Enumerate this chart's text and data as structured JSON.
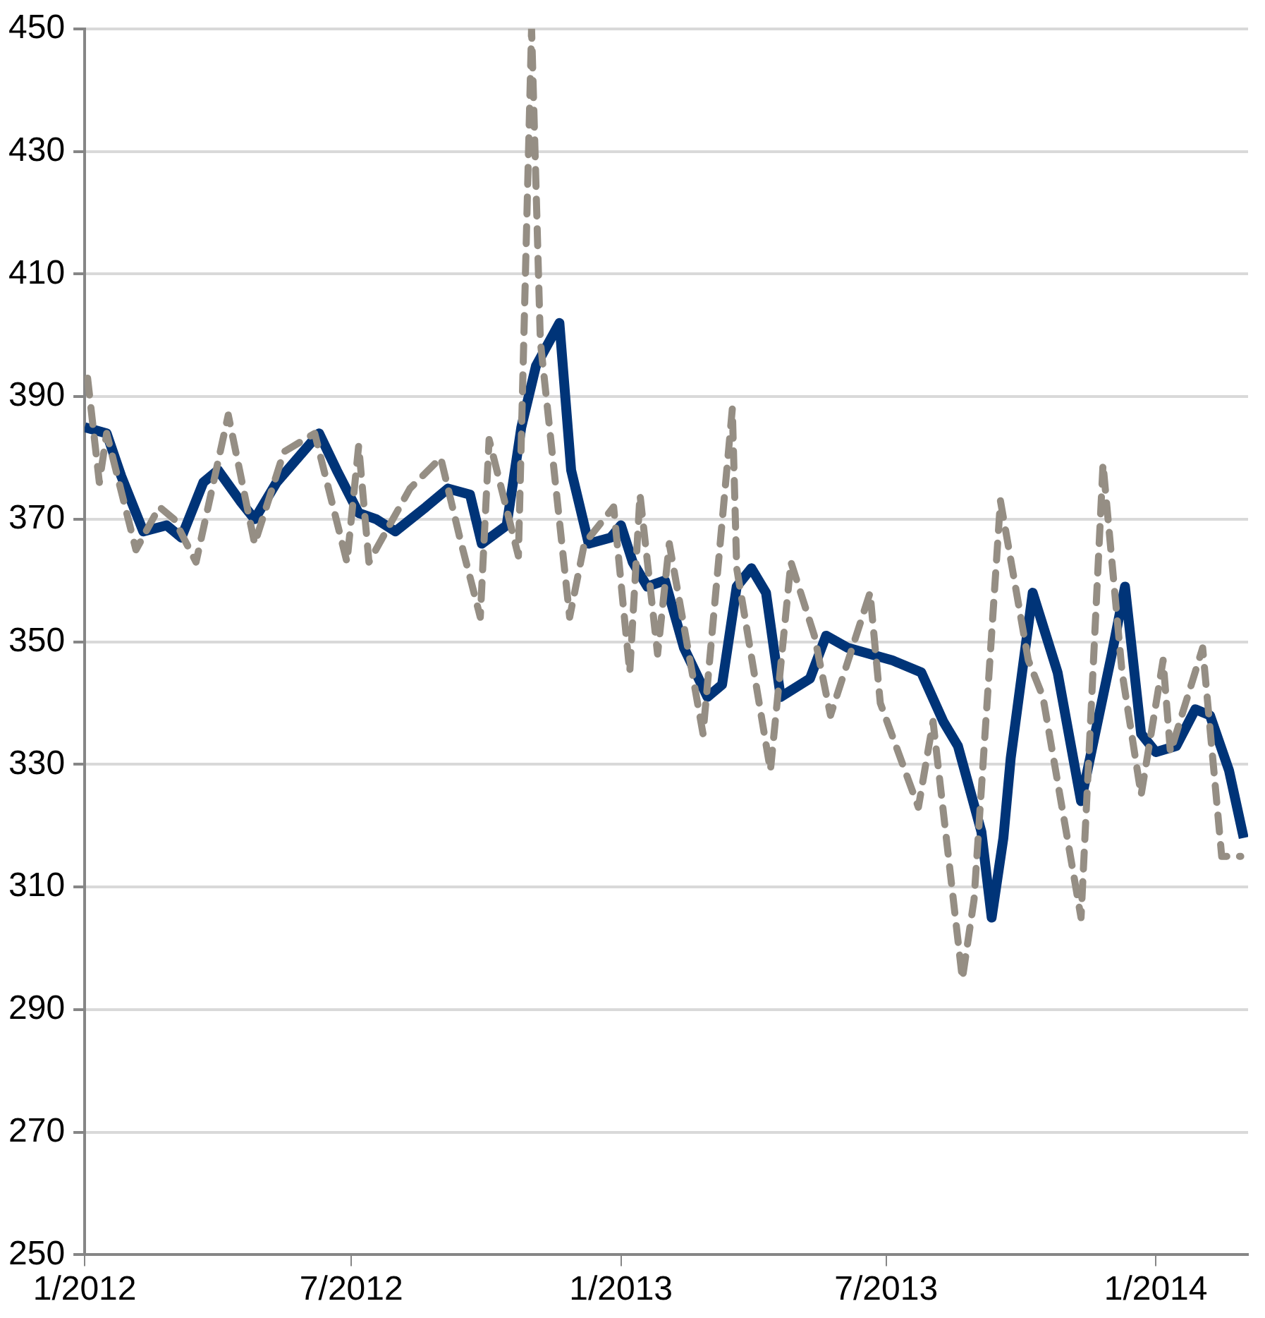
{
  "chart_data": {
    "type": "line",
    "ylim": [
      250,
      450
    ],
    "yticks": [
      250,
      270,
      290,
      310,
      330,
      350,
      370,
      390,
      410,
      430,
      450
    ],
    "xlim": [
      "2012-01-01",
      "2014-03-05"
    ],
    "xticks": [
      {
        "value": "2012-01-01",
        "label": "1/2012"
      },
      {
        "value": "2012-07-01",
        "label": "7/2012"
      },
      {
        "value": "2013-01-01",
        "label": "1/2013"
      },
      {
        "value": "2013-07-01",
        "label": "7/2013"
      },
      {
        "value": "2014-01-01",
        "label": "1/2014"
      }
    ],
    "grid": "y",
    "legend": false,
    "marker": "none",
    "series": [
      {
        "color": "#958e84",
        "line_style": "dashed",
        "x": [
          "2012-01-03",
          "2012-01-11",
          "2012-01-16",
          "2012-02-05",
          "2012-02-21",
          "2012-03-02",
          "2012-03-17",
          "2012-04-08",
          "2012-04-26",
          "2012-05-16",
          "2012-06-06",
          "2012-06-28",
          "2012-07-06",
          "2012-07-13",
          "2012-08-10",
          "2012-08-31",
          "2012-09-13",
          "2012-09-27",
          "2012-10-03",
          "2012-10-23",
          "2012-11-01",
          "2012-11-07",
          "2012-11-27",
          "2012-12-07",
          "2012-12-27",
          "2013-01-07",
          "2013-01-14",
          "2013-01-26",
          "2013-02-03",
          "2013-02-26",
          "2013-03-18",
          "2013-03-21",
          "2013-04-13",
          "2013-04-27",
          "2013-05-13",
          "2013-05-24",
          "2013-06-20",
          "2013-06-27",
          "2013-07-23",
          "2013-08-02",
          "2013-08-22",
          "2013-08-30",
          "2013-09-17",
          "2013-10-06",
          "2013-10-16",
          "2013-11-11",
          "2013-11-26",
          "2013-12-09",
          "2013-12-22",
          "2014-01-06",
          "2014-01-11",
          "2014-02-02",
          "2014-02-15",
          "2014-02-28"
        ],
        "values": [
          393,
          376,
          384,
          365,
          372,
          370,
          363,
          387,
          366,
          381,
          384,
          363,
          382,
          363,
          375,
          380,
          367,
          354,
          383,
          364,
          450,
          399,
          354,
          366,
          372,
          345,
          374,
          348,
          366,
          335,
          388,
          362,
          329,
          363,
          351,
          338,
          358,
          340,
          323,
          337,
          295,
          308,
          373,
          347,
          341,
          305,
          379,
          345,
          325,
          347,
          332,
          349,
          315,
          315
        ]
      },
      {
        "color": "#003478",
        "line_style": "solid",
        "x": [
          "2012-01-01",
          "2012-01-16",
          "2012-01-26",
          "2012-02-10",
          "2012-02-26",
          "2012-03-07",
          "2012-03-22",
          "2012-04-01",
          "2012-04-16",
          "2012-04-26",
          "2012-05-11",
          "2012-06-09",
          "2012-06-21",
          "2012-07-06",
          "2012-07-18",
          "2012-07-31",
          "2012-08-21",
          "2012-09-05",
          "2012-09-20",
          "2012-09-28",
          "2012-10-15",
          "2012-10-25",
          "2012-11-04",
          "2012-11-20",
          "2012-11-28",
          "2012-12-10",
          "2012-12-25",
          "2013-01-01",
          "2013-01-09",
          "2013-01-19",
          "2013-01-31",
          "2013-02-13",
          "2013-03-01",
          "2013-03-11",
          "2013-03-21",
          "2013-03-31",
          "2013-04-10",
          "2013-04-20",
          "2013-05-10",
          "2013-05-21",
          "2013-06-05",
          "2013-06-20",
          "2013-07-05",
          "2013-07-25",
          "2013-08-09",
          "2013-08-19",
          "2013-09-04",
          "2013-09-11",
          "2013-09-19",
          "2013-09-24",
          "2013-10-09",
          "2013-10-26",
          "2013-11-11",
          "2013-12-02",
          "2013-12-11",
          "2013-12-22",
          "2014-01-01",
          "2014-01-15",
          "2014-01-28",
          "2014-02-07",
          "2014-02-20",
          "2014-03-02"
        ],
        "values": [
          385,
          384,
          377,
          368,
          369,
          367,
          376,
          378,
          373,
          370,
          376,
          384,
          378,
          371,
          370,
          368,
          372,
          375,
          374,
          366,
          369,
          385,
          395,
          402,
          378,
          366,
          367,
          369,
          363,
          359,
          360,
          349,
          341,
          343,
          359,
          362,
          358,
          341,
          344,
          351,
          349,
          348,
          347,
          345,
          337,
          333,
          319,
          305,
          318,
          331,
          358,
          345,
          324,
          348,
          359,
          335,
          332,
          333,
          339,
          338,
          329,
          318
        ]
      }
    ]
  }
}
